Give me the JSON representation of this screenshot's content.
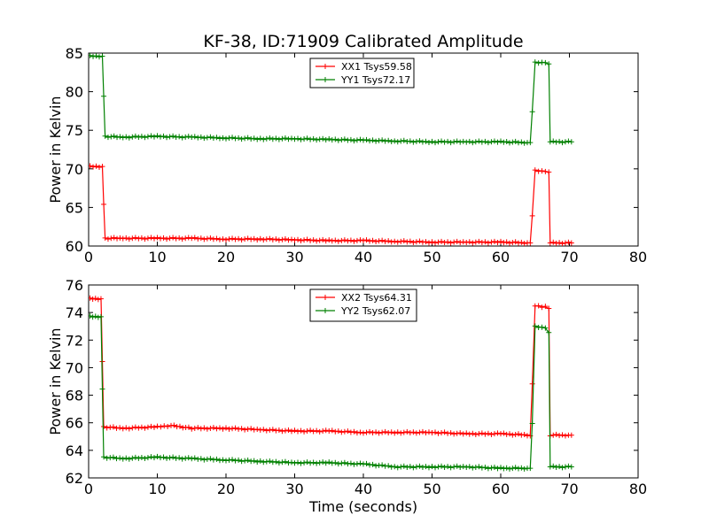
{
  "title": "KF-38, ID:71909 Calibrated Amplitude",
  "chart_data": [
    {
      "type": "line",
      "ylabel": "Power in Kelvin",
      "xlabel": "",
      "xlim": [
        0,
        80
      ],
      "ylim": [
        60,
        85
      ],
      "xticks": [
        "0",
        "10",
        "20",
        "30",
        "40",
        "50",
        "60",
        "70",
        "80"
      ],
      "yticks": [
        "60",
        "65",
        "70",
        "75",
        "80",
        "85"
      ],
      "legend_position": "top-center",
      "series": [
        {
          "name": "XX1 Tsys59.58",
          "color": "#ff0000",
          "x": [
            0.2,
            2.0,
            2.2,
            2.4,
            5,
            10,
            15,
            20,
            25,
            30,
            35,
            40,
            45,
            50,
            55,
            60,
            64.3,
            64.6,
            65.0,
            66.5,
            67.0,
            67.2,
            70.3
          ],
          "y": [
            70.3,
            70.3,
            65.5,
            61.0,
            61.0,
            61.0,
            61.0,
            60.9,
            60.9,
            60.8,
            60.7,
            60.7,
            60.6,
            60.5,
            60.5,
            60.5,
            60.4,
            64.0,
            69.8,
            69.7,
            69.5,
            60.4,
            60.4
          ]
        },
        {
          "name": "YY1 Tsys72.17",
          "color": "#008000",
          "x": [
            0.2,
            2.0,
            2.2,
            2.4,
            5,
            10,
            15,
            20,
            25,
            30,
            35,
            40,
            45,
            50,
            55,
            60,
            64.3,
            64.6,
            65.0,
            66.5,
            67.0,
            67.2,
            70.3
          ],
          "y": [
            84.6,
            84.6,
            79.5,
            74.2,
            74.1,
            74.2,
            74.1,
            74.0,
            73.9,
            73.9,
            73.8,
            73.7,
            73.6,
            73.5,
            73.5,
            73.5,
            73.4,
            77.5,
            83.8,
            83.8,
            83.5,
            73.5,
            73.5
          ]
        }
      ]
    },
    {
      "type": "line",
      "ylabel": "Power in Kelvin",
      "xlabel": "Time (seconds)",
      "xlim": [
        0,
        80
      ],
      "ylim": [
        62,
        76
      ],
      "xticks": [
        "0",
        "10",
        "20",
        "30",
        "40",
        "50",
        "60",
        "70",
        "80"
      ],
      "yticks": [
        "62",
        "64",
        "66",
        "68",
        "70",
        "72",
        "74",
        "76"
      ],
      "legend_position": "top-center",
      "series": [
        {
          "name": "XX2 Tsys64.31",
          "color": "#ff0000",
          "x": [
            0.2,
            1.8,
            2.0,
            2.2,
            5,
            10,
            12,
            15,
            20,
            25,
            30,
            35,
            40,
            45,
            50,
            55,
            60,
            64.3,
            64.6,
            65.0,
            66.5,
            67.0,
            67.2,
            70.3
          ],
          "y": [
            75.0,
            75.0,
            70.5,
            65.7,
            65.6,
            65.7,
            65.8,
            65.6,
            65.6,
            65.5,
            65.4,
            65.4,
            65.3,
            65.3,
            65.3,
            65.2,
            65.2,
            65.1,
            68.8,
            74.5,
            74.4,
            74.3,
            65.1,
            65.1
          ]
        },
        {
          "name": "YY2 Tsys62.07",
          "color": "#008000",
          "x": [
            0.2,
            1.8,
            2.0,
            2.2,
            5,
            10,
            15,
            20,
            25,
            30,
            35,
            40,
            45,
            50,
            55,
            60,
            64.3,
            64.6,
            65.0,
            66.5,
            67.0,
            67.2,
            70.3
          ],
          "y": [
            73.7,
            73.7,
            68.5,
            63.5,
            63.4,
            63.5,
            63.4,
            63.3,
            63.2,
            63.1,
            63.1,
            63.0,
            62.8,
            62.8,
            62.8,
            62.7,
            62.7,
            66.0,
            73.0,
            72.9,
            72.5,
            62.8,
            62.8
          ]
        }
      ]
    }
  ]
}
